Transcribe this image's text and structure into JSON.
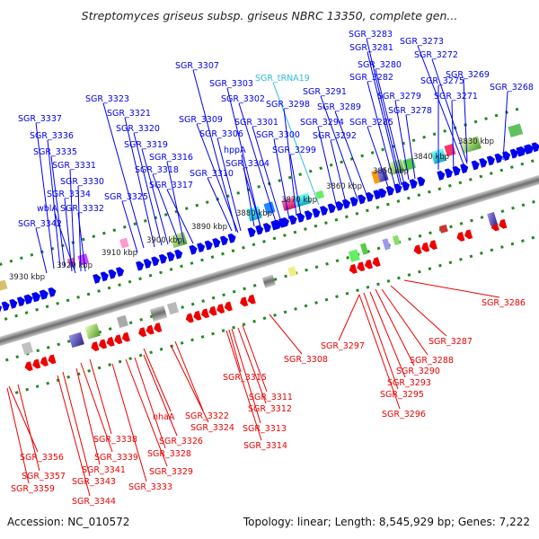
{
  "title": "Streptomyces griseus subsp. griseus NBRC 13350, complete gen...",
  "footer": {
    "accession": "Accession: NC_010572",
    "summary": "Topology: linear; Length: 8,545,929 bp; Genes: 7,222"
  },
  "colors": {
    "forward_gene": "#0000ee",
    "reverse_gene": "#ee0000",
    "trna": "#33bbdd",
    "backbone": "#888888",
    "tick": "#228822"
  },
  "kbp_ticks": [
    "3830 kbp",
    "3840 kbp",
    "3850 kbp",
    "3860 kbp",
    "3870 kbp",
    "3880 kbp",
    "3890 kbp",
    "3900 kbp",
    "3910 kbp",
    "3920 kbp",
    "3930 kbp"
  ],
  "top_labels": [
    "SGR_3283",
    "SGR_3281",
    "SGR_3273",
    "SGR_3272",
    "SGR_3280",
    "SGR_3282",
    "SGR_3275",
    "SGR_3269",
    "SGR_3307",
    "SGR_tRNA19",
    "SGR_3268",
    "SGR_3303",
    "SGR_3291",
    "SGR_3279",
    "SGR_3271",
    "SGR_3302",
    "SGR_3298",
    "SGR_3289",
    "SGR_3278",
    "SGR_3323",
    "SGR_3321",
    "SGR_3309",
    "SGR_3301",
    "SGR_3294",
    "SGR_3285",
    "SGR_3337",
    "SGR_3320",
    "SGR_3306",
    "SGR_3300",
    "SGR_3292",
    "SGR_3336",
    "SGR_3319",
    "hppA",
    "SGR_3299",
    "SGR_3335",
    "SGR_3316",
    "SGR_3304",
    "SGR_3331",
    "SGR_3318",
    "SGR_3310",
    "SGR_3330",
    "SGR_3317",
    "SGR_3334",
    "SGR_3325",
    "wblA",
    "SGR_3332",
    "SGR_3342"
  ],
  "bottom_labels": [
    "SGR_3286",
    "SGR_3287",
    "SGR_3297",
    "SGR_3288",
    "SGR_3308",
    "SGR_3290",
    "SGR_3315",
    "SGR_3293",
    "SGR_3311",
    "SGR_3295",
    "SGR_3312",
    "SGR_3296",
    "nhaA",
    "SGR_3322",
    "SGR_3313",
    "SGR_3324",
    "SGR_3338",
    "SGR_3326",
    "SGR_3314",
    "SGR_3339",
    "SGR_3328",
    "SGR_3356",
    "SGR_3341",
    "SGR_3329",
    "SGR_3357",
    "SGR_3343",
    "SGR_3333",
    "SGR_3359",
    "SGR_3344"
  ]
}
